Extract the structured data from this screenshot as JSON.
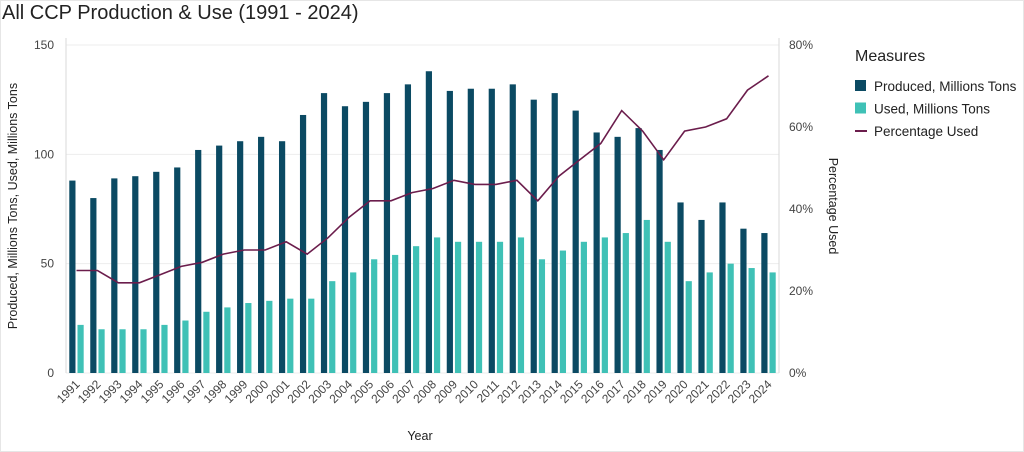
{
  "chart_data": {
    "type": "bar",
    "title": "All CCP Production & Use (1991 - 2024)",
    "xlabel": "Year",
    "ylabel": "Produced, Millions Tons, Used, Millions Tons",
    "y2label": "Percentage Used",
    "ylim": [
      0,
      150
    ],
    "y2lim": [
      0,
      80
    ],
    "yticks": [
      "0",
      "50",
      "100",
      "150"
    ],
    "y2ticks": [
      "0%",
      "20%",
      "40%",
      "60%",
      "80%"
    ],
    "legend_title": "Measures",
    "legend_position": "right",
    "grid": true,
    "categories": [
      "1991",
      "1992",
      "1993",
      "1994",
      "1995",
      "1996",
      "1997",
      "1998",
      "1999",
      "2000",
      "2001",
      "2002",
      "2003",
      "2004",
      "2005",
      "2006",
      "2007",
      "2008",
      "2009",
      "2010",
      "2011",
      "2012",
      "2013",
      "2014",
      "2015",
      "2016",
      "2017",
      "2018",
      "2019",
      "2020",
      "2021",
      "2022",
      "2023",
      "2024"
    ],
    "series": [
      {
        "name": "Produced, Millions Tons",
        "type": "bar",
        "color": "#0b4a63",
        "values": [
          88,
          80,
          89,
          90,
          92,
          94,
          102,
          104,
          106,
          108,
          106,
          118,
          128,
          122,
          124,
          128,
          132,
          138,
          129,
          130,
          130,
          132,
          125,
          128,
          120,
          110,
          108,
          112,
          102,
          78,
          70,
          78,
          66,
          64
        ]
      },
      {
        "name": "Used, Millions Tons",
        "type": "bar",
        "color": "#3fc1b6",
        "values": [
          22,
          20,
          20,
          20,
          22,
          24,
          28,
          30,
          32,
          33,
          34,
          34,
          42,
          46,
          52,
          54,
          58,
          62,
          60,
          60,
          60,
          62,
          52,
          56,
          60,
          62,
          64,
          70,
          60,
          42,
          46,
          50,
          48,
          46
        ]
      },
      {
        "name": "Percentage Used",
        "type": "line",
        "axis": "y2",
        "color": "#6b1d4c",
        "values": [
          25,
          25,
          22,
          22,
          24,
          26,
          27,
          29,
          30,
          30,
          32,
          29,
          33,
          38,
          42,
          42,
          44,
          45,
          47,
          46,
          46,
          47,
          42,
          48,
          52,
          56,
          64,
          59,
          52,
          59,
          60,
          62,
          69,
          72.5
        ]
      }
    ]
  }
}
